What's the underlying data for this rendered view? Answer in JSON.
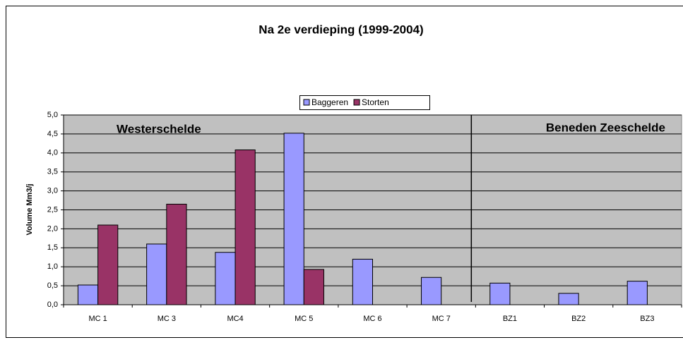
{
  "chart_data": {
    "type": "bar",
    "title": "Na 2e verdieping (1999-2004)",
    "ylabel": "Volume Mm3/j",
    "annotations": [
      "Westerschelde",
      "Beneden Zeeschelde"
    ],
    "categories": [
      "MC 1",
      "MC 3",
      "MC4",
      "MC 5",
      "MC 6",
      "MC 7",
      "BZ1",
      "BZ2",
      "BZ3"
    ],
    "series": [
      {
        "name": "Baggeren",
        "color": "#9999ff",
        "values": [
          0.52,
          1.6,
          1.38,
          4.52,
          1.2,
          0.72,
          0.57,
          0.3,
          0.62
        ]
      },
      {
        "name": "Storten",
        "color": "#993366",
        "values": [
          2.1,
          2.65,
          4.08,
          0.93,
          null,
          null,
          null,
          null,
          null
        ]
      }
    ],
    "ylim": [
      0,
      5
    ],
    "yticks": [
      {
        "value": 0,
        "label": "0,0"
      },
      {
        "value": 0.5,
        "label": "0,5"
      },
      {
        "value": 1,
        "label": "1,0"
      },
      {
        "value": 1.5,
        "label": "1,5"
      },
      {
        "value": 2,
        "label": "2,0"
      },
      {
        "value": 2.5,
        "label": "2,5"
      },
      {
        "value": 3,
        "label": "3,0"
      },
      {
        "value": 3.5,
        "label": "3,5"
      },
      {
        "value": 4,
        "label": "4,0"
      },
      {
        "value": 4.5,
        "label": "4,5"
      },
      {
        "value": 5,
        "label": "5,0"
      }
    ],
    "grid": true,
    "legend": "top"
  }
}
